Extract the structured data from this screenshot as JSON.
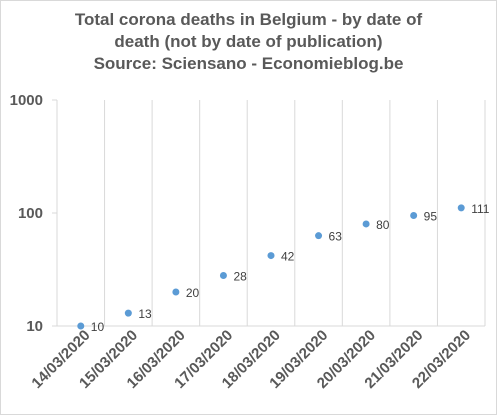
{
  "chart_data": {
    "type": "scatter",
    "title_lines": [
      "Total corona deaths in Belgium - by date of",
      "death (not by date of publication)",
      "Source: Sciensano - Economieblog.be"
    ],
    "categories": [
      "14/03/2020",
      "15/03/2020",
      "16/03/2020",
      "17/03/2020",
      "18/03/2020",
      "19/03/2020",
      "20/03/2020",
      "21/03/2020",
      "22/03/2020"
    ],
    "values": [
      10,
      13,
      20,
      28,
      42,
      63,
      80,
      95,
      111
    ],
    "y_scale": "log",
    "ylim": [
      10,
      1000
    ],
    "y_ticks": [
      "10",
      "100",
      "1000"
    ],
    "grid": "vertical",
    "legend": "none",
    "marker_color": "#5b9bd5",
    "grid_color": "#d9d9d9"
  }
}
